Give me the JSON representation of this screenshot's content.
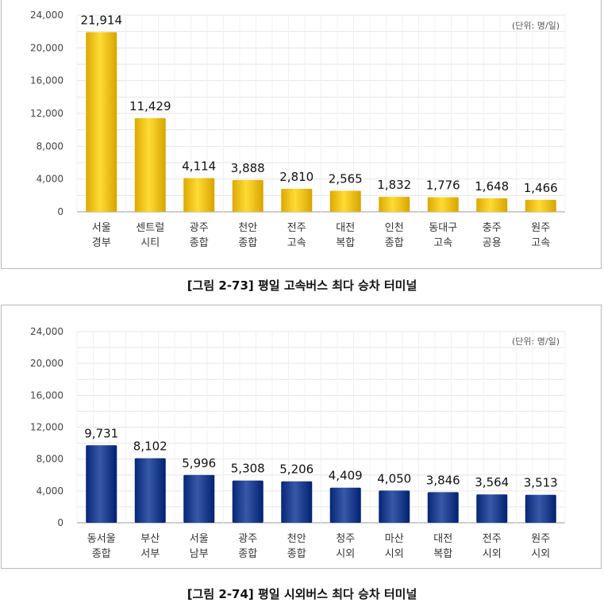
{
  "figures": [
    {
      "caption": "[그림 2-73] 평일 고속버스 최다 승차 터미널",
      "unit": "(단위: 명/일)"
    },
    {
      "caption": "[그림 2-74] 평일 시외버스 최다 승차 터미널",
      "unit": "(단위: 명/일)"
    }
  ],
  "chart_data": [
    {
      "type": "bar",
      "title": "",
      "xlabel": "",
      "ylabel": "",
      "ylim": [
        0,
        24000
      ],
      "yticks": [
        "0",
        "4,000",
        "8,000",
        "12,000",
        "16,000",
        "20,000",
        "24,000"
      ],
      "grid": true,
      "categories": [
        [
          "서울",
          "경부"
        ],
        [
          "센트럴",
          "시티"
        ],
        [
          "광주",
          "종합"
        ],
        [
          "천안",
          "종합"
        ],
        [
          "전주",
          "고속"
        ],
        [
          "대전",
          "복합"
        ],
        [
          "인천",
          "종합"
        ],
        [
          "동대구",
          "고속"
        ],
        [
          "충주",
          "공용"
        ],
        [
          "원주",
          "고속"
        ]
      ],
      "values": [
        21914,
        11429,
        4114,
        3888,
        2810,
        2565,
        1832,
        1776,
        1648,
        1466
      ],
      "value_labels": [
        "21,914",
        "11,429",
        "4,114",
        "3,888",
        "2,810",
        "2,565",
        "1,832",
        "1,776",
        "1,648",
        "1,466"
      ],
      "bar_color": "#f5c21b"
    },
    {
      "type": "bar",
      "title": "",
      "xlabel": "",
      "ylabel": "",
      "ylim": [
        0,
        24000
      ],
      "yticks": [
        "0",
        "4,000",
        "8,000",
        "12,000",
        "16,000",
        "20,000",
        "24,000"
      ],
      "grid": true,
      "categories": [
        [
          "동서울",
          "종합"
        ],
        [
          "부산",
          "서부"
        ],
        [
          "서울",
          "남부"
        ],
        [
          "광주",
          "종합"
        ],
        [
          "천안",
          "종합"
        ],
        [
          "청주",
          "시외"
        ],
        [
          "마산",
          "시외"
        ],
        [
          "대전",
          "복합"
        ],
        [
          "전주",
          "시외"
        ],
        [
          "원주",
          "시외"
        ]
      ],
      "values": [
        9731,
        8102,
        5996,
        5308,
        5206,
        4409,
        4050,
        3846,
        3564,
        3513
      ],
      "value_labels": [
        "9,731",
        "8,102",
        "5,996",
        "5,308",
        "5,206",
        "4,409",
        "4,050",
        "3,846",
        "3,564",
        "3,513"
      ],
      "bar_color": "#1f3f8f"
    }
  ]
}
